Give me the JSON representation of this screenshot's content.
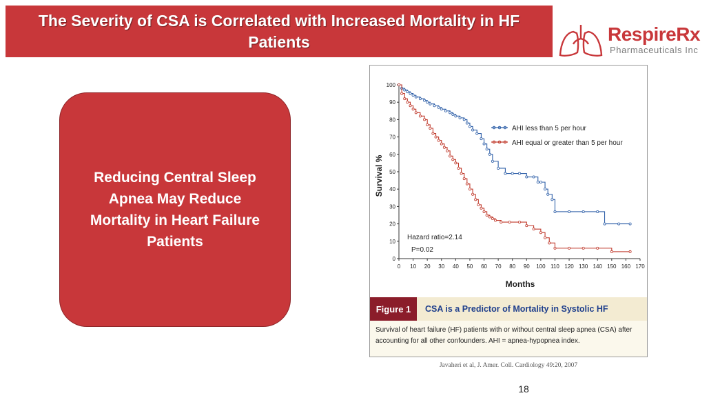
{
  "slide": {
    "title": "The Severity of CSA is Correlated with Increased Mortality in HF Patients",
    "callout_text": "Reducing Central Sleep Apnea May Reduce Mortality in Heart Failure Patients",
    "citation": "Javaheri et al, J. Amer. Coll. Cardiology 49:20, 2007",
    "page_number": "18"
  },
  "logo": {
    "brand": "RespireRx",
    "subtitle": "Pharmaceuticals Inc",
    "color": "#c8373a"
  },
  "figure": {
    "label": "Figure 1",
    "title": "CSA is a Predictor of Mortality in Systolic HF",
    "caption": "Survival of heart failure (HF) patients with or without central sleep apnea (CSA) after accounting for all other confounders. AHI = apnea-hypopnea index."
  },
  "chart_data": {
    "type": "line",
    "step": true,
    "xlabel": "Months",
    "ylabel": "Survival %",
    "xlim": [
      0,
      170
    ],
    "ylim": [
      0,
      100
    ],
    "xticks": [
      0,
      10,
      20,
      30,
      40,
      50,
      60,
      70,
      80,
      90,
      100,
      110,
      120,
      130,
      140,
      150,
      160,
      170
    ],
    "xtick_labels": [
      "0",
      "10",
      "20",
      "30",
      "40",
      "50",
      "60",
      "70",
      "80",
      "90",
      "100",
      "110",
      "120",
      "130",
      "140",
      "150",
      "160",
      "170"
    ],
    "yticks": [
      0,
      10,
      20,
      30,
      40,
      50,
      60,
      70,
      80,
      90,
      100
    ],
    "ytick_labels": [
      "0",
      "10",
      "20",
      "30",
      "40",
      "50",
      "60",
      "70",
      "80",
      "90",
      "100"
    ],
    "legend_position": "upper-right",
    "annotations": [
      "Hazard ratio=2.14",
      "P=0.02"
    ],
    "series": [
      {
        "name": "AHI less than 5 per hour",
        "color": "#2e5fa8",
        "x": [
          0,
          2,
          4,
          6,
          8,
          10,
          12,
          15,
          18,
          20,
          22,
          25,
          28,
          30,
          33,
          36,
          38,
          40,
          43,
          46,
          48,
          50,
          52,
          55,
          58,
          60,
          62,
          64,
          66,
          70,
          75,
          80,
          85,
          90,
          95,
          98,
          100,
          103,
          105,
          108,
          110,
          120,
          130,
          140,
          145,
          155,
          163
        ],
        "y": [
          100,
          98,
          97,
          96,
          95,
          94,
          93,
          92,
          91,
          90,
          89,
          88,
          87,
          86,
          85,
          84,
          83,
          82,
          81,
          80,
          78,
          76,
          74,
          72,
          69,
          66,
          63,
          60,
          56,
          52,
          49,
          49,
          49,
          47,
          47,
          44,
          44,
          40,
          37,
          34,
          27,
          27,
          27,
          27,
          20,
          20,
          20
        ]
      },
      {
        "name": "AHI equal or greater than 5 per hour",
        "color": "#c0392b",
        "x": [
          0,
          2,
          4,
          6,
          8,
          10,
          12,
          15,
          18,
          20,
          22,
          24,
          26,
          28,
          30,
          32,
          34,
          36,
          38,
          40,
          42,
          44,
          46,
          48,
          50,
          52,
          54,
          56,
          58,
          60,
          62,
          64,
          66,
          68,
          72,
          78,
          85,
          90,
          95,
          100,
          103,
          106,
          110,
          120,
          130,
          140,
          150,
          163
        ],
        "y": [
          100,
          95,
          92,
          90,
          88,
          86,
          84,
          82,
          80,
          77,
          75,
          72,
          70,
          68,
          66,
          64,
          62,
          59,
          57,
          55,
          52,
          49,
          46,
          43,
          40,
          37,
          34,
          31,
          29,
          27,
          25,
          24,
          23,
          22,
          21,
          21,
          21,
          19,
          17,
          15,
          12,
          9,
          6,
          6,
          6,
          6,
          4,
          4
        ]
      }
    ]
  }
}
